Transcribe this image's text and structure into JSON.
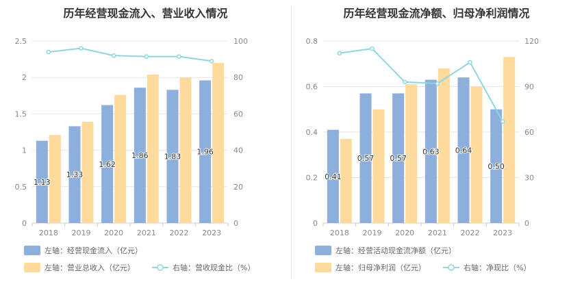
{
  "chart_data": [
    {
      "type": "bar",
      "title": "历年经营现金流入、营业收入情况",
      "categories": [
        "2018",
        "2019",
        "2020",
        "2021",
        "2022",
        "2023"
      ],
      "left_axis": {
        "min": 0,
        "max": 2.5,
        "ticks": [
          "0",
          "0.5",
          "1",
          "1.5",
          "2",
          "2.5"
        ]
      },
      "right_axis": {
        "min": 0,
        "max": 100,
        "ticks": [
          "0",
          "20",
          "40",
          "60",
          "80",
          "100"
        ]
      },
      "series": [
        {
          "name": "左轴：经营现金流入（亿元）",
          "kind": "bar",
          "axis": "left",
          "color": "#8eaedc",
          "values": [
            1.13,
            1.33,
            1.62,
            1.86,
            1.83,
            1.96
          ],
          "labels": [
            "1.13",
            "1.33",
            "1.62",
            "1.86",
            "1.83",
            "1.96"
          ]
        },
        {
          "name": "左轴：营业总收入（亿元）",
          "kind": "bar",
          "axis": "left",
          "color": "#fedb9c",
          "values": [
            1.21,
            1.39,
            1.76,
            2.04,
            2.0,
            2.2
          ]
        },
        {
          "name": "右轴：营收现金比（%）",
          "kind": "line",
          "axis": "right",
          "color": "#8dd6de",
          "values": [
            94,
            96,
            92,
            91.5,
            91.5,
            89
          ]
        }
      ],
      "legend_position": "bottom",
      "grid": true
    },
    {
      "type": "bar",
      "title": "历年经营现金流净额、归母净利润情况",
      "categories": [
        "2018",
        "2019",
        "2020",
        "2021",
        "2022",
        "2023"
      ],
      "left_axis": {
        "min": 0,
        "max": 0.8,
        "ticks": [
          "0",
          "0.2",
          "0.4",
          "0.6",
          "0.8"
        ]
      },
      "right_axis": {
        "min": 0,
        "max": 120,
        "ticks": [
          "0",
          "30",
          "60",
          "90",
          "120"
        ]
      },
      "series": [
        {
          "name": "左轴：经营活动现金流净额（亿元）",
          "kind": "bar",
          "axis": "left",
          "color": "#8eaedc",
          "values": [
            0.41,
            0.57,
            0.57,
            0.63,
            0.64,
            0.5
          ],
          "labels": [
            "0.41",
            "0.57",
            "0.57",
            "0.63",
            "0.64",
            "0.50"
          ]
        },
        {
          "name": "左轴：归母净利润（亿元）",
          "kind": "bar",
          "axis": "left",
          "color": "#fedb9c",
          "values": [
            0.37,
            0.5,
            0.61,
            0.68,
            0.6,
            0.73
          ]
        },
        {
          "name": "右轴：净现比（%）",
          "kind": "line",
          "axis": "right",
          "color": "#8dd6de",
          "values": [
            112,
            115,
            93,
            92,
            106,
            67
          ]
        }
      ],
      "legend_position": "bottom",
      "grid": true
    }
  ]
}
